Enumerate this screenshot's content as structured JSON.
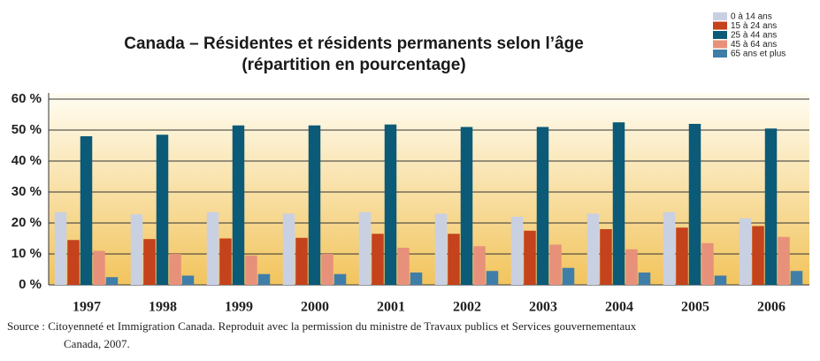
{
  "chart_data": {
    "type": "bar",
    "title": "Canada – Résidentes et résidents permanents selon l’âge",
    "subtitle": "(répartition en pourcentage)",
    "categories": [
      "1997",
      "1998",
      "1999",
      "2000",
      "2001",
      "2002",
      "2003",
      "2004",
      "2005",
      "2006"
    ],
    "series": [
      {
        "name": "0 à 14 ans",
        "color": "#c9d0e2",
        "values": [
          23.5,
          22.8,
          23.5,
          23,
          23.5,
          23,
          22,
          23,
          23.5,
          21.5
        ]
      },
      {
        "name": "15 à 24 ans",
        "color": "#c4421c",
        "values": [
          14.5,
          14.8,
          15,
          15.2,
          16.5,
          16.5,
          17.5,
          18,
          18.5,
          19
        ]
      },
      {
        "name": "25 à 44 ans",
        "color": "#0b5a78",
        "values": [
          48,
          48.5,
          51.5,
          51.5,
          51.8,
          51,
          51,
          52.5,
          52,
          50.5
        ]
      },
      {
        "name": "45 à 64 ans",
        "color": "#e8917a",
        "values": [
          11,
          10,
          9.5,
          10,
          12,
          12.5,
          13,
          11.5,
          13.5,
          15.5
        ]
      },
      {
        "name": "65 ans et plus",
        "color": "#3f7ea8",
        "values": [
          2.5,
          3,
          3.5,
          3.5,
          4,
          4.5,
          5.5,
          4,
          3,
          4.5
        ]
      }
    ],
    "ylim": [
      0,
      62
    ],
    "yticks": [
      {
        "value": 0,
        "label": "0 %"
      },
      {
        "value": 10,
        "label": "10 %"
      },
      {
        "value": 20,
        "label": "20 %"
      },
      {
        "value": 30,
        "label": "30 %"
      },
      {
        "value": 40,
        "label": "40 %"
      },
      {
        "value": 50,
        "label": "50 %"
      },
      {
        "value": 60,
        "label": "60 %"
      }
    ],
    "grid": true,
    "legend": "top-right",
    "source": "Source : Citoyenneté et Immigration Canada. Reproduit avec la permission du ministre de Travaux publics et Services gouvernementaux Canada, 2007."
  }
}
